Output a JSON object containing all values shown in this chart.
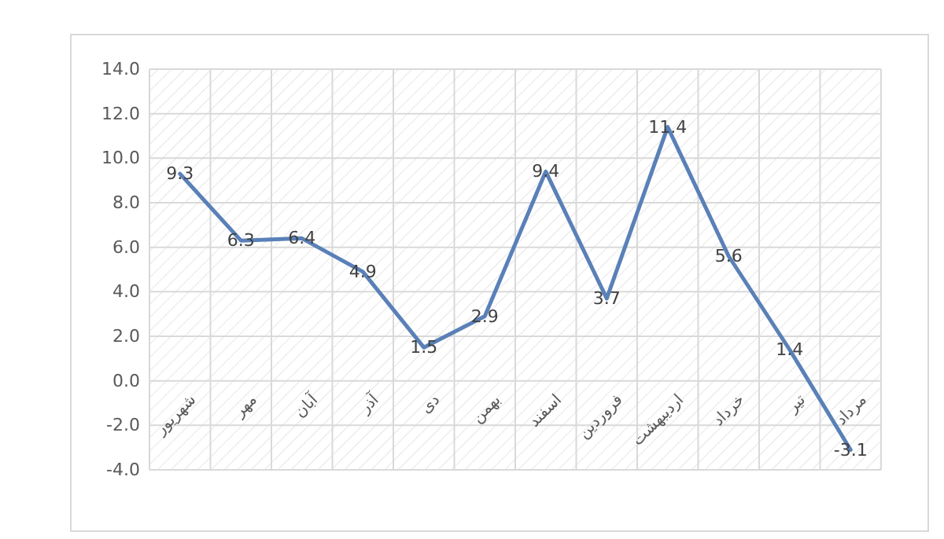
{
  "chart_data": {
    "type": "line",
    "categories": [
      "شهریور",
      "مهر",
      "آبان",
      "آذر",
      "دی",
      "بهمن",
      "اسفند",
      "فروردین",
      "اردیبهشت",
      "خرداد",
      "تیر",
      "مرداد"
    ],
    "values": [
      9.3,
      6.3,
      6.4,
      4.9,
      1.5,
      2.9,
      9.4,
      3.7,
      11.4,
      5.6,
      1.4,
      -3.1
    ],
    "color": "#5a80b8",
    "data_labels": true,
    "grid": true,
    "marker": "none",
    "line_style": "solid",
    "ylim": [
      -4,
      14
    ],
    "yticks": [
      {
        "value": -4,
        "label": "-4.0"
      },
      {
        "value": -2,
        "label": "-2.0"
      },
      {
        "value": 0,
        "label": "0.0"
      },
      {
        "value": 2,
        "label": "2.0"
      },
      {
        "value": 4,
        "label": "4.0"
      },
      {
        "value": 6,
        "label": "6.0"
      },
      {
        "value": 8,
        "label": "8.0"
      },
      {
        "value": 10,
        "label": "10.0"
      },
      {
        "value": 12,
        "label": "12.0"
      },
      {
        "value": 14,
        "label": "14.0"
      }
    ]
  }
}
